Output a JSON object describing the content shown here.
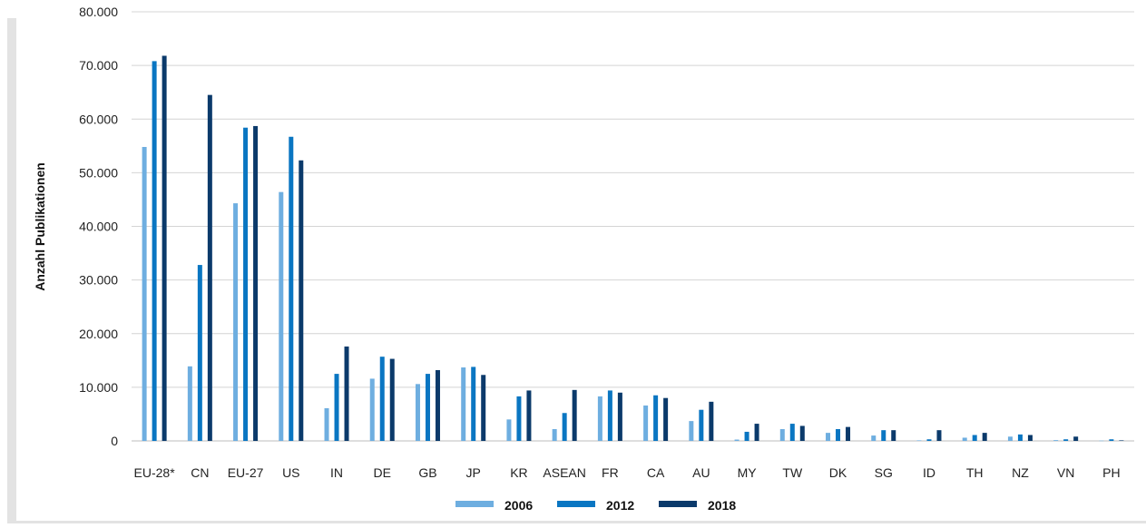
{
  "chart_data": {
    "type": "bar",
    "title": "",
    "xlabel": "",
    "ylabel": "Anzahl Publikationen",
    "ylim": [
      0,
      80000
    ],
    "yticks": [
      0,
      10000,
      20000,
      30000,
      40000,
      50000,
      60000,
      70000,
      80000
    ],
    "ytick_labels": [
      "0",
      "10.000",
      "20.000",
      "30.000",
      "40.000",
      "50.000",
      "60.000",
      "70.000",
      "80.000"
    ],
    "grid": "horizontal",
    "legend_position": "bottom-center",
    "categories": [
      "EU-28*",
      "CN",
      "EU-27",
      "US",
      "IN",
      "DE",
      "GB",
      "JP",
      "KR",
      "ASEAN",
      "FR",
      "CA",
      "AU",
      "MY",
      "TW",
      "DK",
      "SG",
      "ID",
      "TH",
      "NZ",
      "VN",
      "PH"
    ],
    "series": [
      {
        "name": "2006",
        "color": "#6eaee0",
        "values": [
          54800,
          13900,
          44300,
          46400,
          6100,
          11600,
          10600,
          13700,
          4000,
          2200,
          8300,
          6600,
          3700,
          250,
          2200,
          1500,
          1000,
          100,
          600,
          800,
          150,
          50
        ]
      },
      {
        "name": "2012",
        "color": "#0a76c2",
        "values": [
          70800,
          32800,
          58400,
          56700,
          12500,
          15700,
          12500,
          13800,
          8300,
          5200,
          9400,
          8500,
          5800,
          1700,
          3200,
          2200,
          2000,
          300,
          1100,
          1200,
          300,
          300
        ]
      },
      {
        "name": "2018",
        "color": "#0b3a6b",
        "values": [
          71800,
          64500,
          58700,
          52300,
          17600,
          15300,
          13200,
          12300,
          9400,
          9500,
          9000,
          8000,
          7300,
          3200,
          2800,
          2600,
          2000,
          2000,
          1500,
          1100,
          800,
          100
        ]
      }
    ]
  }
}
